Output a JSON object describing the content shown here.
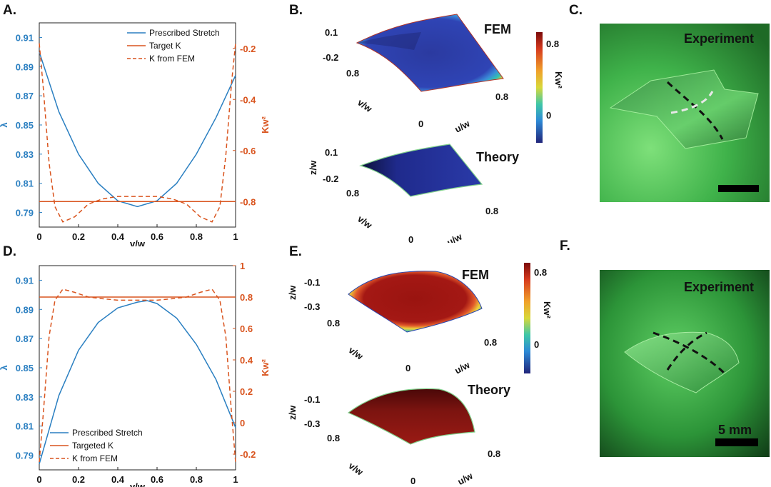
{
  "panels": {
    "A": "A.",
    "B": "B.",
    "C": "C.",
    "D": "D.",
    "E": "E.",
    "F": "F."
  },
  "chart_data": [
    {
      "panel": "A",
      "type": "line",
      "xlabel": "v/w",
      "ylabel_left": "λ",
      "ylabel_right": "Kw²",
      "xlim": [
        0,
        1
      ],
      "ylim_left": [
        0.78,
        0.92
      ],
      "ylim_right": [
        -0.9,
        -0.1
      ],
      "xticks": [
        "0",
        "0.2",
        "0.4",
        "0.6",
        "0.8",
        "1"
      ],
      "yticks_left": [
        "0.91",
        "0.89",
        "0.87",
        "0.85",
        "0.83",
        "0.81",
        "0.79"
      ],
      "yticks_right": [
        "-0.2",
        "-0.4",
        "-0.6",
        "-0.8"
      ],
      "legend": [
        "Prescribed Stretch",
        "Target K",
        "K from FEM"
      ],
      "series": [
        {
          "name": "Prescribed Stretch",
          "axis": "left",
          "x": [
            0,
            0.1,
            0.2,
            0.3,
            0.4,
            0.5,
            0.6,
            0.7,
            0.8,
            0.9,
            1.0
          ],
          "values": [
            0.9,
            0.859,
            0.83,
            0.81,
            0.798,
            0.794,
            0.798,
            0.81,
            0.83,
            0.855,
            0.884
          ]
        },
        {
          "name": "Target K",
          "axis": "right",
          "x": [
            0,
            1
          ],
          "values": [
            -0.8,
            -0.8
          ]
        },
        {
          "name": "K from FEM",
          "axis": "right",
          "x": [
            0,
            0.02,
            0.05,
            0.08,
            0.12,
            0.18,
            0.25,
            0.32,
            0.4,
            0.5,
            0.6,
            0.68,
            0.75,
            0.82,
            0.88,
            0.92,
            0.95,
            0.98,
            1.0
          ],
          "values": [
            -0.18,
            -0.35,
            -0.65,
            -0.82,
            -0.88,
            -0.86,
            -0.81,
            -0.79,
            -0.78,
            -0.78,
            -0.78,
            -0.79,
            -0.81,
            -0.86,
            -0.88,
            -0.82,
            -0.62,
            -0.33,
            -0.18
          ]
        }
      ]
    },
    {
      "panel": "D",
      "type": "line",
      "xlabel": "v/w",
      "ylabel_left": "λ",
      "ylabel_right": "Kw²",
      "xlim": [
        0,
        1
      ],
      "ylim_left": [
        0.78,
        0.92
      ],
      "ylim_right": [
        -0.3,
        1.0
      ],
      "xticks": [
        "0",
        "0.2",
        "0.4",
        "0.6",
        "0.8",
        "1"
      ],
      "yticks_left": [
        "0.91",
        "0.89",
        "0.87",
        "0.85",
        "0.83",
        "0.81",
        "0.79"
      ],
      "yticks_right": [
        "1",
        "0.8",
        "0.6",
        "0.4",
        "0.2",
        "0",
        "-0.2"
      ],
      "legend": [
        "Prescribed Stretch",
        "Targeted K",
        "K from FEM"
      ],
      "series": [
        {
          "name": "Prescribed Stretch",
          "axis": "left",
          "x": [
            0,
            0.1,
            0.2,
            0.3,
            0.4,
            0.5,
            0.55,
            0.6,
            0.7,
            0.8,
            0.9,
            1.0
          ],
          "values": [
            0.784,
            0.831,
            0.862,
            0.881,
            0.891,
            0.895,
            0.896,
            0.894,
            0.884,
            0.866,
            0.842,
            0.809
          ]
        },
        {
          "name": "Targeted K",
          "axis": "right",
          "x": [
            0,
            1
          ],
          "values": [
            0.8,
            0.8
          ]
        },
        {
          "name": "K from FEM",
          "axis": "right",
          "x": [
            0,
            0.02,
            0.05,
            0.08,
            0.12,
            0.18,
            0.25,
            0.32,
            0.4,
            0.5,
            0.6,
            0.68,
            0.75,
            0.82,
            0.88,
            0.92,
            0.95,
            0.98,
            1.0
          ],
          "values": [
            -0.25,
            0.05,
            0.55,
            0.78,
            0.85,
            0.83,
            0.8,
            0.79,
            0.78,
            0.78,
            0.78,
            0.79,
            0.8,
            0.83,
            0.85,
            0.78,
            0.55,
            0.05,
            -0.25
          ]
        }
      ]
    },
    {
      "panel": "B",
      "type": "heatmap",
      "colorbar_label": "Kw²",
      "colorbar_ticks": [
        "0.8",
        "0"
      ],
      "top_title": "FEM",
      "bottom_title": "Theory",
      "z_ticks": [
        "0.1",
        "-0.2"
      ],
      "v_ticks": [
        "0.8",
        "0"
      ],
      "u_ticks": [
        "0",
        "0.8"
      ],
      "axes": {
        "z": "z/w",
        "v": "v/w",
        "u": "u/w"
      }
    },
    {
      "panel": "E",
      "type": "heatmap",
      "colorbar_label": "Kw²",
      "colorbar_ticks": [
        "0.8",
        "0"
      ],
      "top_title": "FEM",
      "bottom_title": "Theory",
      "z_ticks": [
        "-0.1",
        "-0.3"
      ],
      "v_ticks": [
        "0.8",
        "0"
      ],
      "u_ticks": [
        "0",
        "0.8"
      ],
      "axes": {
        "z": "z/w",
        "v": "v/w",
        "u": "u/w"
      }
    }
  ],
  "photos": {
    "C": {
      "title": "Experiment"
    },
    "F": {
      "title": "Experiment",
      "scale": "5 mm"
    }
  },
  "colors": {
    "blue": "#2a7fc1",
    "orange": "#d9541e"
  }
}
